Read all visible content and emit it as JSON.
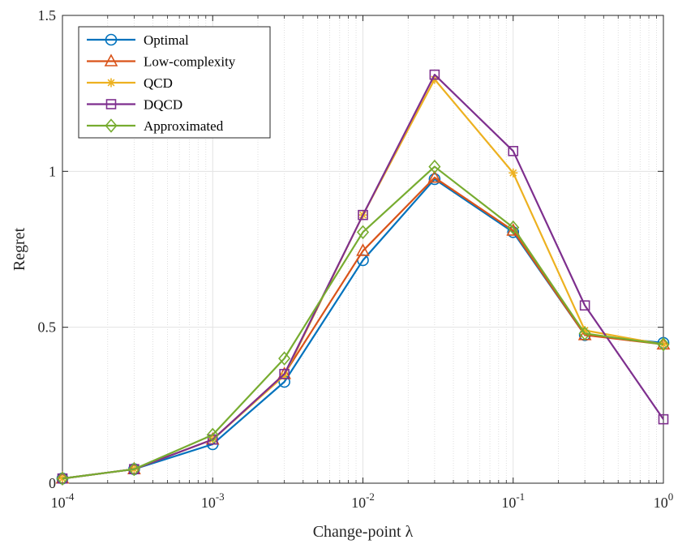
{
  "chart_data": {
    "type": "line",
    "title": "",
    "xlabel": "Change-point λ",
    "ylabel": "Regret",
    "x_scale": "log",
    "xlim": [
      0.0001,
      1
    ],
    "ylim": [
      0,
      1.5
    ],
    "grid": true,
    "legend_position": "top-left",
    "x": [
      0.0001,
      0.0003,
      0.001,
      0.003,
      0.01,
      0.03,
      0.1,
      0.3,
      1
    ],
    "x_ticks": [
      {
        "base": "10",
        "exp": "-4"
      },
      {
        "base": "10",
        "exp": "-3"
      },
      {
        "base": "10",
        "exp": "-2"
      },
      {
        "base": "10",
        "exp": "-1"
      },
      {
        "base": "10",
        "exp": "0"
      }
    ],
    "y_ticks": [
      "0",
      "0.5",
      "1",
      "1.5"
    ],
    "y_tick_values": [
      0,
      0.5,
      1,
      1.5
    ],
    "series": [
      {
        "name": "Optimal",
        "color": "#0072BD",
        "marker": "circle",
        "values": [
          0.015,
          0.045,
          0.125,
          0.325,
          0.715,
          0.975,
          0.805,
          0.475,
          0.45
        ]
      },
      {
        "name": "Low-complexity",
        "color": "#D95319",
        "marker": "triangle",
        "values": [
          0.015,
          0.045,
          0.14,
          0.35,
          0.745,
          0.98,
          0.81,
          0.475,
          0.445
        ]
      },
      {
        "name": "QCD",
        "color": "#EDB120",
        "marker": "asterisk",
        "values": [
          0.015,
          0.045,
          0.14,
          0.345,
          0.86,
          1.295,
          0.995,
          0.49,
          0.445
        ]
      },
      {
        "name": "DQCD",
        "color": "#7E2F8E",
        "marker": "square",
        "values": [
          0.015,
          0.045,
          0.14,
          0.35,
          0.86,
          1.31,
          1.065,
          0.57,
          0.205
        ]
      },
      {
        "name": "Approximated",
        "color": "#77AC30",
        "marker": "diamond",
        "values": [
          0.015,
          0.045,
          0.155,
          0.4,
          0.805,
          1.015,
          0.82,
          0.48,
          0.445
        ]
      }
    ]
  }
}
